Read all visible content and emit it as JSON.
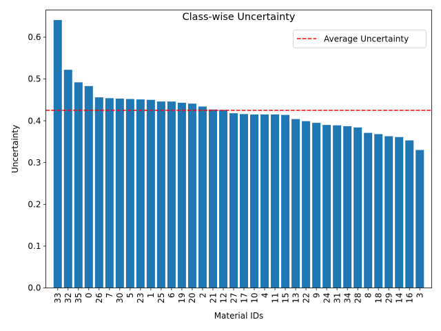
{
  "chart_data": {
    "type": "bar",
    "title": "Class-wise Uncertainty",
    "xlabel": "Material IDs",
    "ylabel": "Uncertainty",
    "ylim": [
      0,
      0.665
    ],
    "yticks": [
      "0.0",
      "0.1",
      "0.2",
      "0.3",
      "0.4",
      "0.5",
      "0.6"
    ],
    "categories": [
      "33",
      "32",
      "35",
      "0",
      "26",
      "7",
      "30",
      "5",
      "23",
      "1",
      "25",
      "6",
      "19",
      "20",
      "2",
      "21",
      "12",
      "27",
      "17",
      "10",
      "4",
      "11",
      "15",
      "13",
      "22",
      "9",
      "24",
      "31",
      "34",
      "28",
      "8",
      "18",
      "29",
      "14",
      "16",
      "3"
    ],
    "values": [
      0.641,
      0.522,
      0.492,
      0.483,
      0.456,
      0.454,
      0.453,
      0.452,
      0.451,
      0.45,
      0.446,
      0.446,
      0.443,
      0.441,
      0.434,
      0.427,
      0.426,
      0.418,
      0.416,
      0.415,
      0.415,
      0.415,
      0.414,
      0.404,
      0.399,
      0.395,
      0.39,
      0.389,
      0.387,
      0.384,
      0.371,
      0.368,
      0.363,
      0.361,
      0.353,
      0.33
    ],
    "bar_color": "#1f77b4",
    "average": 0.425,
    "average_line_color": "#ff0000",
    "legend": {
      "label": "Average Uncertainty",
      "position": "top-right"
    },
    "grid": false
  }
}
